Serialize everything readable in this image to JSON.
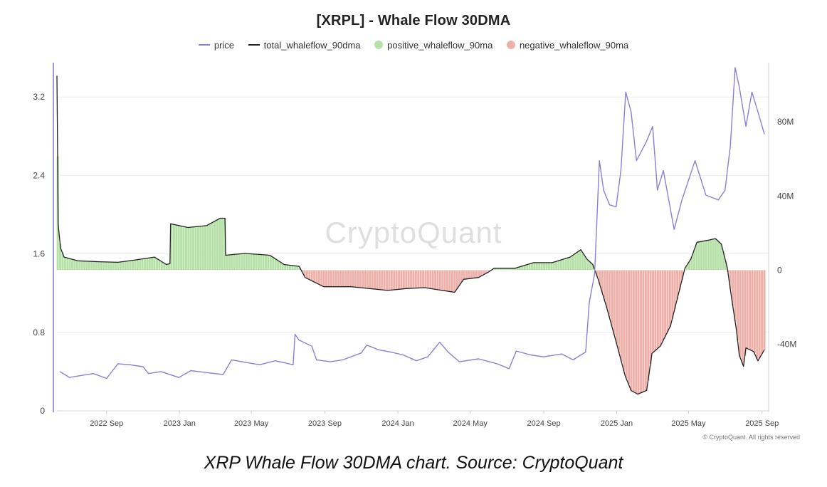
{
  "chart_data": {
    "type": "line",
    "title": "[XRPL] - Whale Flow 30DMA",
    "legend": {
      "placement": "top-center",
      "entries": [
        {
          "name": "price",
          "color": "#8b7fd6",
          "marker": "line"
        },
        {
          "name": "total_whaleflow_90dma",
          "color": "#222222",
          "marker": "line"
        },
        {
          "name": "positive_whaleflow_90ma",
          "color": "#b5e0a6",
          "marker": "dot"
        },
        {
          "name": "negative_whaleflow_90ma",
          "color": "#eeb1aa",
          "marker": "dot"
        }
      ]
    },
    "x_axis": {
      "type": "date",
      "range": [
        "2022-06-10",
        "2025-09-12"
      ],
      "ticks": [
        {
          "date": "2022-09-01",
          "label": "2022 Sep"
        },
        {
          "date": "2023-01-01",
          "label": "2023 Jan"
        },
        {
          "date": "2023-05-01",
          "label": "2023 May"
        },
        {
          "date": "2023-09-01",
          "label": "2023 Sep"
        },
        {
          "date": "2024-01-01",
          "label": "2024 Jan"
        },
        {
          "date": "2024-05-01",
          "label": "2024 May"
        },
        {
          "date": "2024-09-01",
          "label": "2024 Sep"
        },
        {
          "date": "2025-01-01",
          "label": "2025 Jan"
        },
        {
          "date": "2025-05-01",
          "label": "2025 May"
        },
        {
          "date": "2025-09-01",
          "label": "2025 Sep"
        }
      ]
    },
    "y_left": {
      "series": "price",
      "range": [
        0,
        3.55
      ],
      "ticks": [
        {
          "value": 0,
          "label": "0"
        },
        {
          "value": 0.8,
          "label": "0.8"
        },
        {
          "value": 1.6,
          "label": "1.6"
        },
        {
          "value": 2.4,
          "label": "2.4"
        },
        {
          "value": 3.2,
          "label": "3.2"
        }
      ]
    },
    "y_right": {
      "series": "total_whaleflow_90dma",
      "range": [
        -76000000,
        112000000
      ],
      "ticks": [
        {
          "value": -40000000,
          "label": "-40M"
        },
        {
          "value": 0,
          "label": "0"
        },
        {
          "value": 40000000,
          "label": "40M"
        },
        {
          "value": 80000000,
          "label": "80M"
        }
      ]
    },
    "grid": {
      "horizontal": true,
      "vertical": false
    },
    "series": [
      {
        "name": "price",
        "axis": "left",
        "color": "#8b7fd6",
        "points": [
          [
            "2022-06-15",
            0.4
          ],
          [
            "2022-07-01",
            0.34
          ],
          [
            "2022-07-20",
            0.36
          ],
          [
            "2022-08-10",
            0.38
          ],
          [
            "2022-09-01",
            0.33
          ],
          [
            "2022-09-20",
            0.48
          ],
          [
            "2022-10-10",
            0.47
          ],
          [
            "2022-11-01",
            0.45
          ],
          [
            "2022-11-10",
            0.38
          ],
          [
            "2022-12-01",
            0.4
          ],
          [
            "2022-12-31",
            0.34
          ],
          [
            "2023-01-20",
            0.41
          ],
          [
            "2023-02-15",
            0.39
          ],
          [
            "2023-03-15",
            0.37
          ],
          [
            "2023-03-29",
            0.52
          ],
          [
            "2023-04-15",
            0.5
          ],
          [
            "2023-05-15",
            0.47
          ],
          [
            "2023-06-10",
            0.51
          ],
          [
            "2023-07-10",
            0.47
          ],
          [
            "2023-07-13",
            0.78
          ],
          [
            "2023-07-20",
            0.72
          ],
          [
            "2023-08-10",
            0.66
          ],
          [
            "2023-08-18",
            0.52
          ],
          [
            "2023-09-10",
            0.5
          ],
          [
            "2023-10-01",
            0.52
          ],
          [
            "2023-11-01",
            0.59
          ],
          [
            "2023-11-10",
            0.67
          ],
          [
            "2023-12-01",
            0.62
          ],
          [
            "2023-12-20",
            0.6
          ],
          [
            "2024-01-10",
            0.57
          ],
          [
            "2024-02-01",
            0.51
          ],
          [
            "2024-02-20",
            0.55
          ],
          [
            "2024-03-11",
            0.7
          ],
          [
            "2024-03-25",
            0.6
          ],
          [
            "2024-04-13",
            0.5
          ],
          [
            "2024-05-15",
            0.53
          ],
          [
            "2024-06-15",
            0.48
          ],
          [
            "2024-07-05",
            0.43
          ],
          [
            "2024-07-17",
            0.61
          ],
          [
            "2024-08-10",
            0.57
          ],
          [
            "2024-09-01",
            0.55
          ],
          [
            "2024-10-01",
            0.58
          ],
          [
            "2024-10-20",
            0.52
          ],
          [
            "2024-11-10",
            0.6
          ],
          [
            "2024-11-16",
            1.1
          ],
          [
            "2024-11-25",
            1.4
          ],
          [
            "2024-12-03",
            2.55
          ],
          [
            "2024-12-10",
            2.25
          ],
          [
            "2024-12-20",
            2.1
          ],
          [
            "2024-12-31",
            2.08
          ],
          [
            "2025-01-08",
            2.45
          ],
          [
            "2025-01-16",
            3.25
          ],
          [
            "2025-01-25",
            3.05
          ],
          [
            "2025-02-03",
            2.55
          ],
          [
            "2025-02-20",
            2.75
          ],
          [
            "2025-03-02",
            2.9
          ],
          [
            "2025-03-10",
            2.25
          ],
          [
            "2025-03-20",
            2.45
          ],
          [
            "2025-04-07",
            1.85
          ],
          [
            "2025-04-20",
            2.15
          ],
          [
            "2025-05-12",
            2.55
          ],
          [
            "2025-05-30",
            2.2
          ],
          [
            "2025-06-20",
            2.15
          ],
          [
            "2025-07-01",
            2.25
          ],
          [
            "2025-07-10",
            2.7
          ],
          [
            "2025-07-18",
            3.5
          ],
          [
            "2025-07-25",
            3.3
          ],
          [
            "2025-08-05",
            2.9
          ],
          [
            "2025-08-15",
            3.25
          ],
          [
            "2025-08-25",
            3.05
          ],
          [
            "2025-09-05",
            2.82
          ]
        ]
      },
      {
        "name": "total_whaleflow_90dma",
        "axis": "right",
        "color": "#222222",
        "fill_positive": "#b5e0a6",
        "fill_negative": "#eeb1aa",
        "points": [
          [
            "2022-06-10",
            105000000
          ],
          [
            "2022-06-11",
            70000000
          ],
          [
            "2022-06-12",
            25000000
          ],
          [
            "2022-06-16",
            12000000
          ],
          [
            "2022-06-22",
            7000000
          ],
          [
            "2022-07-15",
            5000000
          ],
          [
            "2022-08-20",
            4500000
          ],
          [
            "2022-09-20",
            4200000
          ],
          [
            "2022-10-20",
            5500000
          ],
          [
            "2022-11-20",
            7000000
          ],
          [
            "2022-12-10",
            3000000
          ],
          [
            "2022-12-16",
            3500000
          ],
          [
            "2022-12-17",
            25000000
          ],
          [
            "2023-01-15",
            23000000
          ],
          [
            "2023-02-15",
            24000000
          ],
          [
            "2023-03-10",
            28000000
          ],
          [
            "2023-03-18",
            28000000
          ],
          [
            "2023-03-19",
            8000000
          ],
          [
            "2023-04-20",
            9000000
          ],
          [
            "2023-06-01",
            8000000
          ],
          [
            "2023-06-25",
            3000000
          ],
          [
            "2023-07-20",
            2000000
          ],
          [
            "2023-07-30",
            -4000000
          ],
          [
            "2023-08-30",
            -9000000
          ],
          [
            "2023-10-15",
            -9000000
          ],
          [
            "2023-11-15",
            -10000000
          ],
          [
            "2023-12-15",
            -11000000
          ],
          [
            "2024-01-15",
            -10000000
          ],
          [
            "2024-02-15",
            -9500000
          ],
          [
            "2024-03-15",
            -11000000
          ],
          [
            "2024-04-05",
            -12000000
          ],
          [
            "2024-04-20",
            -5000000
          ],
          [
            "2024-05-15",
            -4000000
          ],
          [
            "2024-06-01",
            -1000000
          ],
          [
            "2024-06-10",
            1000000
          ],
          [
            "2024-07-15",
            1000000
          ],
          [
            "2024-08-15",
            4000000
          ],
          [
            "2024-09-15",
            4000000
          ],
          [
            "2024-10-15",
            7000000
          ],
          [
            "2024-11-02",
            11000000
          ],
          [
            "2024-11-12",
            6000000
          ],
          [
            "2024-11-22",
            3000000
          ],
          [
            "2024-12-01",
            -5000000
          ],
          [
            "2024-12-15",
            -20000000
          ],
          [
            "2025-01-01",
            -40000000
          ],
          [
            "2025-01-15",
            -57000000
          ],
          [
            "2025-01-25",
            -65000000
          ],
          [
            "2025-02-05",
            -67000000
          ],
          [
            "2025-02-20",
            -65000000
          ],
          [
            "2025-03-01",
            -45000000
          ],
          [
            "2025-03-15",
            -41000000
          ],
          [
            "2025-04-01",
            -30000000
          ],
          [
            "2025-04-15",
            -12000000
          ],
          [
            "2025-04-25",
            1000000
          ],
          [
            "2025-05-05",
            6000000
          ],
          [
            "2025-05-15",
            15000000
          ],
          [
            "2025-06-01",
            16000000
          ],
          [
            "2025-06-15",
            17000000
          ],
          [
            "2025-06-25",
            14000000
          ],
          [
            "2025-07-05",
            1000000
          ],
          [
            "2025-07-12",
            -15000000
          ],
          [
            "2025-07-20",
            -32000000
          ],
          [
            "2025-07-25",
            -46000000
          ],
          [
            "2025-08-01",
            -52000000
          ],
          [
            "2025-08-05",
            -42000000
          ],
          [
            "2025-08-18",
            -44000000
          ],
          [
            "2025-08-25",
            -49000000
          ],
          [
            "2025-09-05",
            -43000000
          ]
        ]
      }
    ]
  },
  "watermark": "CryptoQuant",
  "copyright": "© CryptoQuant. All rights reserved",
  "caption": "XRP Whale Flow 30DMA chart. Source: CryptoQuant"
}
